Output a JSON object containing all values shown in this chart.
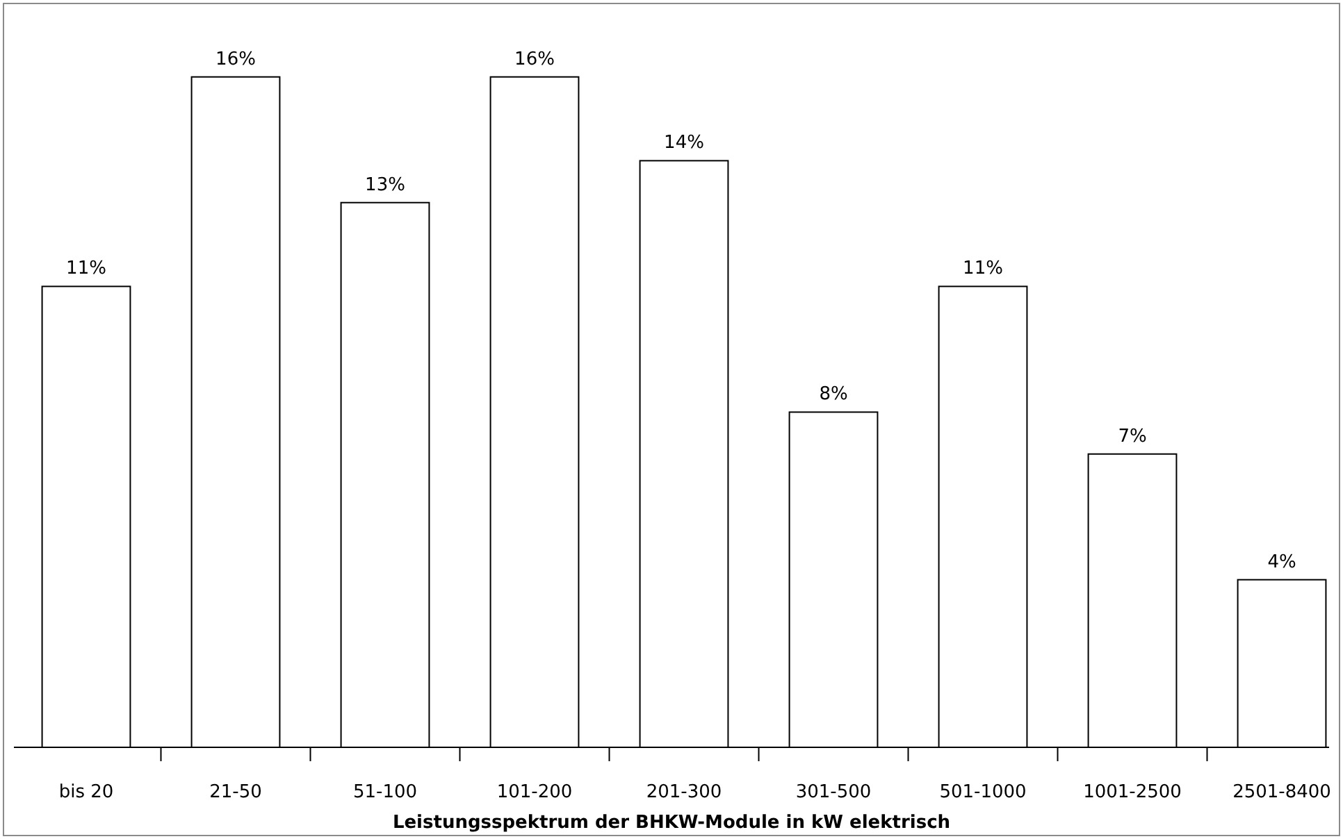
{
  "chart_data": {
    "type": "bar",
    "xlabel": "Leistungsspektrum der BHKW-Module in kW elektrisch",
    "categories": [
      "bis 20",
      "21-50",
      "51-100",
      "101-200",
      "201-300",
      "301-500",
      "501-1000",
      "1001-2500",
      "2501-8400"
    ],
    "values": [
      11,
      16,
      13,
      16,
      14,
      8,
      11,
      7,
      4
    ],
    "value_labels": [
      "11%",
      "16%",
      "13%",
      "16%",
      "14%",
      "8%",
      "11%",
      "7%",
      "4%"
    ],
    "color": "#ffffff"
  }
}
